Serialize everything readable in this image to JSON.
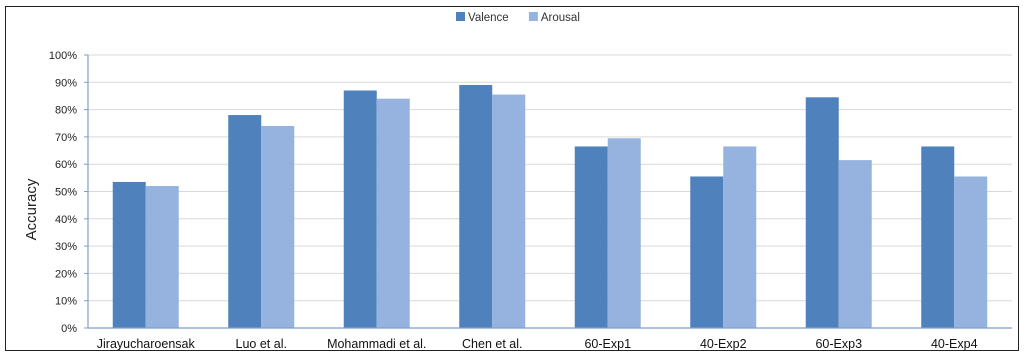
{
  "chart_data": {
    "type": "bar",
    "title": "",
    "xlabel": "",
    "ylabel": "Accuracy",
    "ylim": [
      0,
      100
    ],
    "yticks": [
      0,
      10,
      20,
      30,
      40,
      50,
      60,
      70,
      80,
      90,
      100
    ],
    "ytick_suffix": "%",
    "categories": [
      "Jirayucharoensak",
      "Luo et al.",
      "Mohammadi et al.",
      "Chen et al.",
      "60-Exp1",
      "40-Exp2",
      "60-Exp3",
      "40-Exp4"
    ],
    "series": [
      {
        "name": "Valence",
        "color": "#4f81bd",
        "values": [
          53.5,
          78,
          87,
          89,
          66.5,
          55.5,
          84.5,
          66.5
        ]
      },
      {
        "name": "Arousal",
        "color": "#95b3de",
        "values": [
          52,
          74,
          84,
          85.5,
          69.5,
          66.5,
          61.5,
          55.5
        ]
      }
    ],
    "legend_position": "top-center",
    "grid": true
  }
}
